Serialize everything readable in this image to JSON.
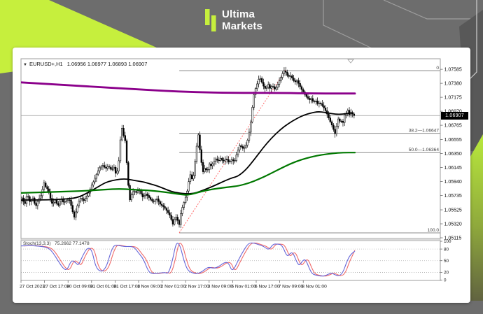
{
  "header": {
    "brand_line1": "Ultima",
    "brand_line2": "Markets"
  },
  "chart": {
    "symbol_period": "EURUSD+,H1",
    "ohlc_text": "1.06956 1.06977 1.06893 1.06907",
    "current_price": "1.06907"
  },
  "colors": {
    "page_bg": "#6d6d6d",
    "accent_lime": "#c6ef3d",
    "panel": "#ffffff",
    "frame": "#9e9e9e",
    "candle": "#000000",
    "ma_purple": "#8b008b",
    "ma_black": "#000000",
    "ma_green": "#007800",
    "fib_line": "#8c8c8c",
    "trendline": "#ff6666",
    "price_line": "#9b9b9b",
    "tag_bg": "#000000",
    "tag_text": "#ffffff",
    "stoch_main": "#6565d8",
    "stoch_signal": "#f06a6a"
  },
  "chart_data": {
    "type": "candlestick",
    "symbol": "EURUSD+",
    "timeframe": "H1",
    "title": "EURUSD+,H1 1.06956 1.06977 1.06893 1.06907",
    "ohlc": {
      "open": 1.06956,
      "high": 1.06977,
      "low": 1.06893,
      "close": 1.06907
    },
    "grid": false,
    "legend_position": "none",
    "y_axis": {
      "side": "right",
      "ylim": [
        1.05105,
        1.0774
      ],
      "tick_labels": [
        "1.07585",
        "1.07380",
        "1.07175",
        "1.06970",
        "1.06765",
        "1.06555",
        "1.06350",
        "1.06145",
        "1.05940",
        "1.05735",
        "1.05525",
        "1.05320",
        "1.05115"
      ],
      "tick_values": [
        1.07585,
        1.0738,
        1.07175,
        1.0697,
        1.06765,
        1.06555,
        1.0635,
        1.06145,
        1.0594,
        1.05735,
        1.05525,
        1.0532,
        1.05115
      ]
    },
    "x_axis": {
      "tick_labels": [
        "27 Oct 2023",
        "27 Oct 17:00",
        "30 Oct 09:00",
        "31 Oct 01:00",
        "31 Oct 17:00",
        "1 Nov 09:00",
        "2 Nov 01:00",
        "2 Nov 17:00",
        "3 Nov 09:00",
        "6 Nov 01:00",
        "6 Nov 17:00",
        "7 Nov 09:00",
        "8 Nov 01:00"
      ]
    },
    "price_line": {
      "price": 1.06907
    },
    "fibonacci": {
      "x_start_frac": 0.474,
      "x_end": "plot_right",
      "levels": [
        {
          "label": "0",
          "price": 1.07566
        },
        {
          "label": "38.2—1.06647",
          "price": 1.06647
        },
        {
          "label": "50.0—1.06364",
          "price": 1.06364
        },
        {
          "label": "100.0",
          "price": 1.05187
        }
      ],
      "trendline": {
        "from": [
          0.474,
          1.05187
        ],
        "to": [
          0.7925,
          1.07577
        ],
        "style": "dashed"
      }
    },
    "price_path": [
      [
        0.0,
        1.05659
      ],
      [
        0.006,
        1.0571
      ],
      [
        0.013,
        1.05588
      ],
      [
        0.021,
        1.05761
      ],
      [
        0.029,
        1.05639
      ],
      [
        0.038,
        1.057
      ],
      [
        0.046,
        1.05567
      ],
      [
        0.055,
        1.0568
      ],
      [
        0.063,
        1.0574
      ],
      [
        0.071,
        1.05924
      ],
      [
        0.078,
        1.05843
      ],
      [
        0.084,
        1.05822
      ],
      [
        0.09,
        1.057
      ],
      [
        0.096,
        1.05608
      ],
      [
        0.105,
        1.05669
      ],
      [
        0.113,
        1.05578
      ],
      [
        0.122,
        1.0569
      ],
      [
        0.13,
        1.05629
      ],
      [
        0.138,
        1.05659
      ],
      [
        0.147,
        1.0568
      ],
      [
        0.155,
        1.05547
      ],
      [
        0.161,
        1.05404
      ],
      [
        0.168,
        1.05516
      ],
      [
        0.174,
        1.05639
      ],
      [
        0.182,
        1.057
      ],
      [
        0.191,
        1.05659
      ],
      [
        0.199,
        1.0572
      ],
      [
        0.206,
        1.05782
      ],
      [
        0.214,
        1.05884
      ],
      [
        0.222,
        1.05965
      ],
      [
        0.231,
        1.06077
      ],
      [
        0.239,
        1.06149
      ],
      [
        0.247,
        1.06179
      ],
      [
        0.256,
        1.06128
      ],
      [
        0.264,
        1.06169
      ],
      [
        0.273,
        1.06108
      ],
      [
        0.281,
        1.06149
      ],
      [
        0.287,
        1.06037
      ],
      [
        0.294,
        1.06149
      ],
      [
        0.298,
        1.06455
      ],
      [
        0.304,
        1.06741
      ],
      [
        0.308,
        1.06639
      ],
      [
        0.315,
        1.06526
      ],
      [
        0.319,
        1.0622
      ],
      [
        0.323,
        1.05945
      ],
      [
        0.327,
        1.05639
      ],
      [
        0.331,
        1.0572
      ],
      [
        0.34,
        1.05812
      ],
      [
        0.346,
        1.05772
      ],
      [
        0.356,
        1.05822
      ],
      [
        0.367,
        1.0571
      ],
      [
        0.377,
        1.05761
      ],
      [
        0.388,
        1.0569
      ],
      [
        0.398,
        1.05639
      ],
      [
        0.409,
        1.0569
      ],
      [
        0.419,
        1.05608
      ],
      [
        0.43,
        1.05567
      ],
      [
        0.44,
        1.05506
      ],
      [
        0.449,
        1.05435
      ],
      [
        0.457,
        1.05313
      ],
      [
        0.465,
        1.05435
      ],
      [
        0.472,
        1.05364
      ],
      [
        0.476,
        1.05302
      ],
      [
        0.482,
        1.05506
      ],
      [
        0.491,
        1.05639
      ],
      [
        0.499,
        1.05772
      ],
      [
        0.505,
        1.05945
      ],
      [
        0.509,
        1.06047
      ],
      [
        0.514,
        1.05976
      ],
      [
        0.52,
        1.06037
      ],
      [
        0.526,
        1.06353
      ],
      [
        0.533,
        1.06639
      ],
      [
        0.537,
        1.06455
      ],
      [
        0.541,
        1.06282
      ],
      [
        0.547,
        1.06077
      ],
      [
        0.554,
        1.06149
      ],
      [
        0.56,
        1.06077
      ],
      [
        0.566,
        1.062
      ],
      [
        0.572,
        1.06169
      ],
      [
        0.579,
        1.0622
      ],
      [
        0.587,
        1.06282
      ],
      [
        0.593,
        1.06231
      ],
      [
        0.6,
        1.06282
      ],
      [
        0.608,
        1.06231
      ],
      [
        0.616,
        1.06282
      ],
      [
        0.625,
        1.0622
      ],
      [
        0.633,
        1.06261
      ],
      [
        0.642,
        1.06231
      ],
      [
        0.65,
        1.06373
      ],
      [
        0.658,
        1.06476
      ],
      [
        0.667,
        1.06424
      ],
      [
        0.675,
        1.06455
      ],
      [
        0.683,
        1.06577
      ],
      [
        0.692,
        1.06863
      ],
      [
        0.698,
        1.07169
      ],
      [
        0.704,
        1.07291
      ],
      [
        0.711,
        1.07393
      ],
      [
        0.717,
        1.07475
      ],
      [
        0.723,
        1.07404
      ],
      [
        0.73,
        1.07322
      ],
      [
        0.736,
        1.07291
      ],
      [
        0.742,
        1.07373
      ],
      [
        0.748,
        1.07302
      ],
      [
        0.755,
        1.07353
      ],
      [
        0.761,
        1.07291
      ],
      [
        0.767,
        1.07322
      ],
      [
        0.774,
        1.07393
      ],
      [
        0.78,
        1.07455
      ],
      [
        0.784,
        1.07506
      ],
      [
        0.788,
        1.07546
      ],
      [
        0.793,
        1.07577
      ],
      [
        0.797,
        1.07516
      ],
      [
        0.803,
        1.07475
      ],
      [
        0.809,
        1.07495
      ],
      [
        0.816,
        1.07444
      ],
      [
        0.822,
        1.07393
      ],
      [
        0.828,
        1.07424
      ],
      [
        0.834,
        1.07373
      ],
      [
        0.841,
        1.07302
      ],
      [
        0.847,
        1.07261
      ],
      [
        0.853,
        1.0721
      ],
      [
        0.86,
        1.07169
      ],
      [
        0.866,
        1.07138
      ],
      [
        0.872,
        1.07159
      ],
      [
        0.878,
        1.07098
      ],
      [
        0.885,
        1.07128
      ],
      [
        0.891,
        1.07077
      ],
      [
        0.897,
        1.07098
      ],
      [
        0.904,
        1.07057
      ],
      [
        0.91,
        1.07016
      ],
      [
        0.916,
        1.06965
      ],
      [
        0.922,
        1.06894
      ],
      [
        0.929,
        1.06812
      ],
      [
        0.935,
        1.06751
      ],
      [
        0.939,
        1.0669
      ],
      [
        0.943,
        1.06639
      ],
      [
        0.948,
        1.06761
      ],
      [
        0.952,
        1.06863
      ],
      [
        0.956,
        1.06802
      ],
      [
        0.96,
        1.06883
      ],
      [
        0.964,
        1.06761
      ],
      [
        0.969,
        1.06843
      ],
      [
        0.973,
        1.06965
      ],
      [
        0.977,
        1.06934
      ],
      [
        0.981,
        1.06985
      ],
      [
        0.985,
        1.06914
      ],
      [
        0.99,
        1.06955
      ],
      [
        1.0,
        1.06907
      ]
    ],
    "moving_averages": [
      {
        "name": "slow-ma-purple",
        "color": "#8b008b",
        "width": 2.8,
        "points": [
          [
            0.0,
            1.07393
          ],
          [
            0.105,
            1.07363
          ],
          [
            0.21,
            1.07332
          ],
          [
            0.314,
            1.07302
          ],
          [
            0.419,
            1.07271
          ],
          [
            0.524,
            1.0725
          ],
          [
            0.629,
            1.0724
          ],
          [
            0.776,
            1.0724
          ],
          [
            0.881,
            1.0723
          ],
          [
            1.0,
            1.0723
          ]
        ]
      },
      {
        "name": "mid-ma-black",
        "color": "#000000",
        "width": 1.8,
        "points": [
          [
            0.0,
            1.05669
          ],
          [
            0.063,
            1.05669
          ],
          [
            0.126,
            1.0568
          ],
          [
            0.168,
            1.057
          ],
          [
            0.199,
            1.05772
          ],
          [
            0.231,
            1.05863
          ],
          [
            0.252,
            1.05924
          ],
          [
            0.273,
            1.05955
          ],
          [
            0.298,
            1.05976
          ],
          [
            0.319,
            1.05976
          ],
          [
            0.34,
            1.05955
          ],
          [
            0.367,
            1.05935
          ],
          [
            0.388,
            1.05904
          ],
          [
            0.409,
            1.05874
          ],
          [
            0.43,
            1.05833
          ],
          [
            0.451,
            1.05792
          ],
          [
            0.472,
            1.05772
          ],
          [
            0.493,
            1.05761
          ],
          [
            0.514,
            1.05761
          ],
          [
            0.535,
            1.05792
          ],
          [
            0.556,
            1.05833
          ],
          [
            0.577,
            1.05874
          ],
          [
            0.608,
            1.05945
          ],
          [
            0.633,
            1.05996
          ],
          [
            0.65,
            1.06016
          ],
          [
            0.675,
            1.06118
          ],
          [
            0.7,
            1.06271
          ],
          [
            0.725,
            1.06434
          ],
          [
            0.75,
            1.06577
          ],
          [
            0.776,
            1.06699
          ],
          [
            0.801,
            1.06791
          ],
          [
            0.826,
            1.06863
          ],
          [
            0.847,
            1.06914
          ],
          [
            0.868,
            1.06944
          ],
          [
            0.889,
            1.06965
          ],
          [
            0.91,
            1.06955
          ],
          [
            0.931,
            1.06934
          ],
          [
            0.952,
            1.06924
          ],
          [
            0.973,
            1.06934
          ],
          [
            0.99,
            1.06944
          ]
        ]
      },
      {
        "name": "trend-ma-green",
        "color": "#007800",
        "width": 2.2,
        "points": [
          [
            0.0,
            1.05772
          ],
          [
            0.063,
            1.05782
          ],
          [
            0.126,
            1.05792
          ],
          [
            0.189,
            1.05802
          ],
          [
            0.252,
            1.05822
          ],
          [
            0.294,
            1.05833
          ],
          [
            0.335,
            1.05822
          ],
          [
            0.377,
            1.05812
          ],
          [
            0.419,
            1.05792
          ],
          [
            0.451,
            1.05772
          ],
          [
            0.478,
            1.05751
          ],
          [
            0.503,
            1.05741
          ],
          [
            0.53,
            1.05782
          ],
          [
            0.566,
            1.05822
          ],
          [
            0.597,
            1.05843
          ],
          [
            0.629,
            1.05863
          ],
          [
            0.65,
            1.05874
          ],
          [
            0.681,
            1.05914
          ],
          [
            0.713,
            1.05976
          ],
          [
            0.744,
            1.06047
          ],
          [
            0.776,
            1.06128
          ],
          [
            0.807,
            1.062
          ],
          [
            0.839,
            1.06261
          ],
          [
            0.87,
            1.06302
          ],
          [
            0.902,
            1.06333
          ],
          [
            0.933,
            1.06353
          ],
          [
            0.964,
            1.06364
          ],
          [
            1.0,
            1.06364
          ]
        ]
      }
    ],
    "sub_chart": {
      "type": "line",
      "indicator_label": "Stoch(13,3,3)",
      "values_text": "75.2662 77.1478",
      "main_value": 75.2662,
      "signal_value": 77.1478,
      "range": [
        0,
        100
      ],
      "level_lines": [
        80,
        50,
        20
      ],
      "axis_labels": [
        "100",
        "80",
        "50",
        "20",
        "0"
      ],
      "axis_values": [
        100,
        80,
        50,
        20,
        0
      ],
      "main": [
        [
          0.0,
          88
        ],
        [
          0.021,
          89
        ],
        [
          0.052,
          88
        ],
        [
          0.08,
          84
        ],
        [
          0.094,
          73
        ],
        [
          0.111,
          50
        ],
        [
          0.126,
          30
        ],
        [
          0.138,
          25
        ],
        [
          0.151,
          52
        ],
        [
          0.164,
          45
        ],
        [
          0.172,
          37
        ],
        [
          0.184,
          62
        ],
        [
          0.199,
          84
        ],
        [
          0.212,
          79
        ],
        [
          0.224,
          32
        ],
        [
          0.241,
          20
        ],
        [
          0.256,
          34
        ],
        [
          0.268,
          70
        ],
        [
          0.279,
          91
        ],
        [
          0.294,
          89
        ],
        [
          0.31,
          86
        ],
        [
          0.327,
          87
        ],
        [
          0.34,
          84
        ],
        [
          0.352,
          70
        ],
        [
          0.367,
          54
        ],
        [
          0.382,
          21
        ],
        [
          0.394,
          16
        ],
        [
          0.415,
          18
        ],
        [
          0.43,
          20
        ],
        [
          0.442,
          16
        ],
        [
          0.455,
          55
        ],
        [
          0.465,
          98
        ],
        [
          0.476,
          91
        ],
        [
          0.488,
          50
        ],
        [
          0.499,
          25
        ],
        [
          0.514,
          18
        ],
        [
          0.528,
          16
        ],
        [
          0.545,
          23
        ],
        [
          0.56,
          34
        ],
        [
          0.577,
          30
        ],
        [
          0.591,
          34
        ],
        [
          0.608,
          45
        ],
        [
          0.621,
          46
        ],
        [
          0.633,
          20
        ],
        [
          0.65,
          50
        ],
        [
          0.667,
          77
        ],
        [
          0.681,
          95
        ],
        [
          0.696,
          96
        ],
        [
          0.713,
          91
        ],
        [
          0.727,
          87
        ],
        [
          0.742,
          77
        ],
        [
          0.755,
          93
        ],
        [
          0.767,
          93
        ],
        [
          0.782,
          91
        ],
        [
          0.797,
          59
        ],
        [
          0.807,
          70
        ],
        [
          0.815,
          70
        ],
        [
          0.826,
          46
        ],
        [
          0.834,
          37
        ],
        [
          0.845,
          52
        ],
        [
          0.853,
          52
        ],
        [
          0.864,
          29
        ],
        [
          0.872,
          16
        ],
        [
          0.885,
          12
        ],
        [
          0.902,
          10
        ],
        [
          0.914,
          12
        ],
        [
          0.929,
          19
        ],
        [
          0.939,
          14
        ],
        [
          0.952,
          10
        ],
        [
          0.964,
          19
        ],
        [
          0.975,
          46
        ],
        [
          0.985,
          64
        ],
        [
          1.0,
          75
        ]
      ],
      "signal_lag_frac": 0.008
    }
  }
}
